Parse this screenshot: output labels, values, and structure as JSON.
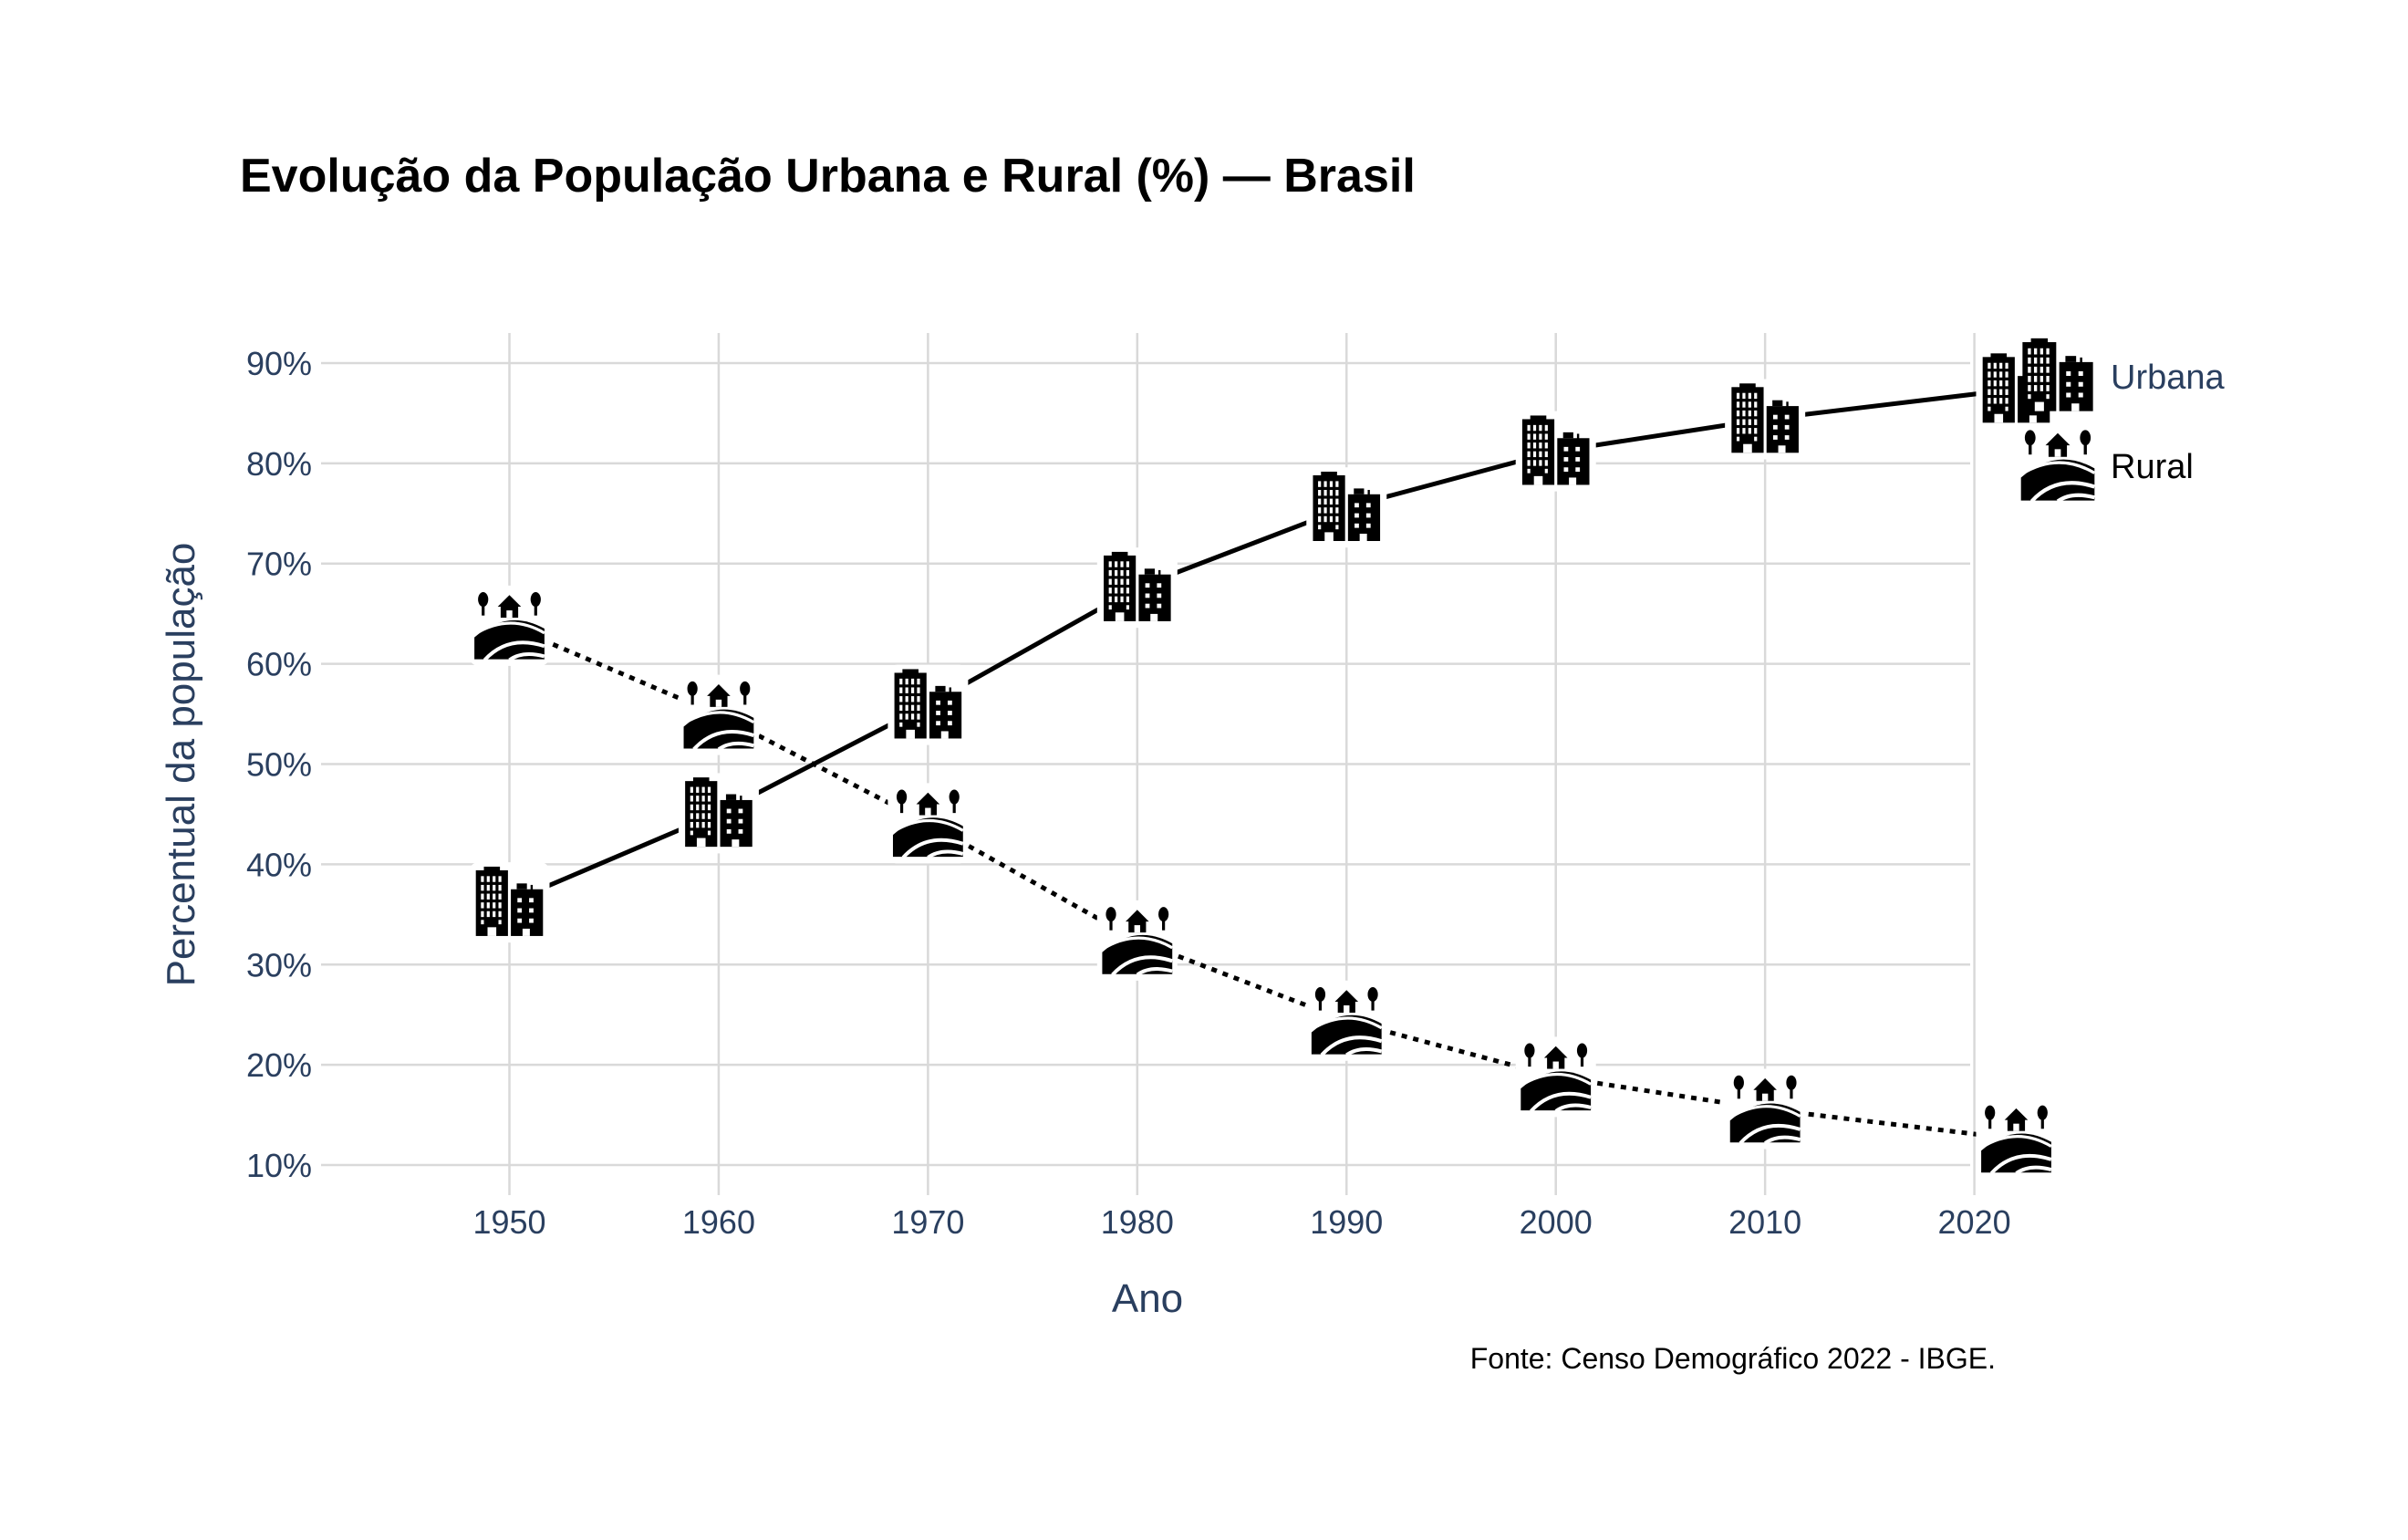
{
  "chart_data": {
    "type": "line",
    "title": "Evolução da População Urbana e Rural (%) — Brasil",
    "xlabel": "Ano",
    "ylabel": "Percentual da população",
    "source": "Fonte: Censo Demográfico 2022 - IBGE.",
    "x": [
      1950,
      1960,
      1970,
      1980,
      1990,
      2000,
      2010,
      2022
    ],
    "x_ticks": [
      "1950",
      "1960",
      "1970",
      "1980",
      "1990",
      "2000",
      "2010",
      "2020"
    ],
    "x_tick_values": [
      1950,
      1960,
      1970,
      1980,
      1990,
      2000,
      2010,
      2020
    ],
    "xlim": [
      1941,
      2019.8
    ],
    "y_ticks": [
      "10%",
      "20%",
      "30%",
      "40%",
      "50%",
      "60%",
      "70%",
      "80%",
      "90%"
    ],
    "y_tick_values": [
      10,
      20,
      30,
      40,
      50,
      60,
      70,
      80,
      90
    ],
    "ylim": [
      7,
      93
    ],
    "grid": true,
    "legend_position": "top-right",
    "series": [
      {
        "name": "Urbana",
        "values": [
          36.2,
          45.1,
          55.9,
          67.6,
          75.6,
          81.2,
          84.4,
          87.4
        ],
        "line_style": "solid",
        "icon": "building-icon",
        "color": "#000000",
        "legend_color": "#2a3f5f"
      },
      {
        "name": "Rural",
        "values": [
          63.8,
          54.9,
          44.1,
          32.4,
          24.4,
          18.8,
          15.6,
          12.6
        ],
        "line_style": "dotted",
        "icon": "farm-icon",
        "color": "#000000",
        "legend_color": "#000000"
      }
    ]
  }
}
